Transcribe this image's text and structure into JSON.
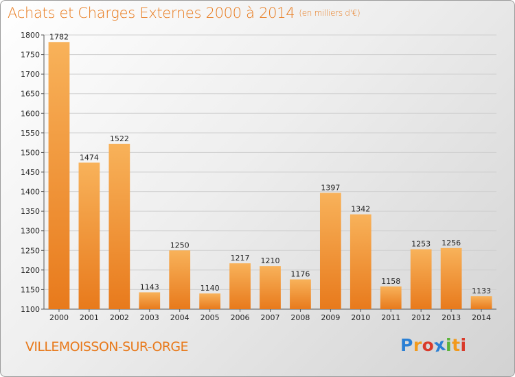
{
  "chart_data": {
    "type": "bar",
    "title": "Achats et Charges Externes 2000 à 2014",
    "subtitle": "(en milliers d'€)",
    "categories": [
      "2000",
      "2001",
      "2002",
      "2003",
      "2004",
      "2005",
      "2006",
      "2007",
      "2008",
      "2009",
      "2010",
      "2011",
      "2012",
      "2013",
      "2014"
    ],
    "values": [
      1782,
      1474,
      1522,
      1143,
      1250,
      1140,
      1217,
      1210,
      1176,
      1397,
      1342,
      1158,
      1253,
      1256,
      1133
    ],
    "ylim": [
      1100,
      1800
    ],
    "yticks": [
      1100,
      1150,
      1200,
      1250,
      1300,
      1350,
      1400,
      1450,
      1500,
      1550,
      1600,
      1650,
      1700,
      1750,
      1800
    ],
    "grid": true,
    "data_labels": true,
    "bar_color": "#e87a1c",
    "bar_highlight": "#f8b25a"
  },
  "commune": "VILLEMOISSON-SUR-ORGE",
  "logo": {
    "letters": [
      {
        "ch": "P",
        "color": "#2a7fd4"
      },
      {
        "ch": "r",
        "color": "#f29a1c"
      },
      {
        "ch": "o",
        "color": "#d93a2a"
      },
      {
        "ch": "x",
        "color": "#2a7fd4"
      },
      {
        "ch": "i",
        "color": "#5ab33a"
      },
      {
        "ch": "t",
        "color": "#f29a1c"
      },
      {
        "ch": "i",
        "color": "#d93a2a"
      }
    ]
  },
  "colors": {
    "accent": "#e87a1c",
    "grid": "#cfcfcf",
    "axis": "#555555"
  }
}
